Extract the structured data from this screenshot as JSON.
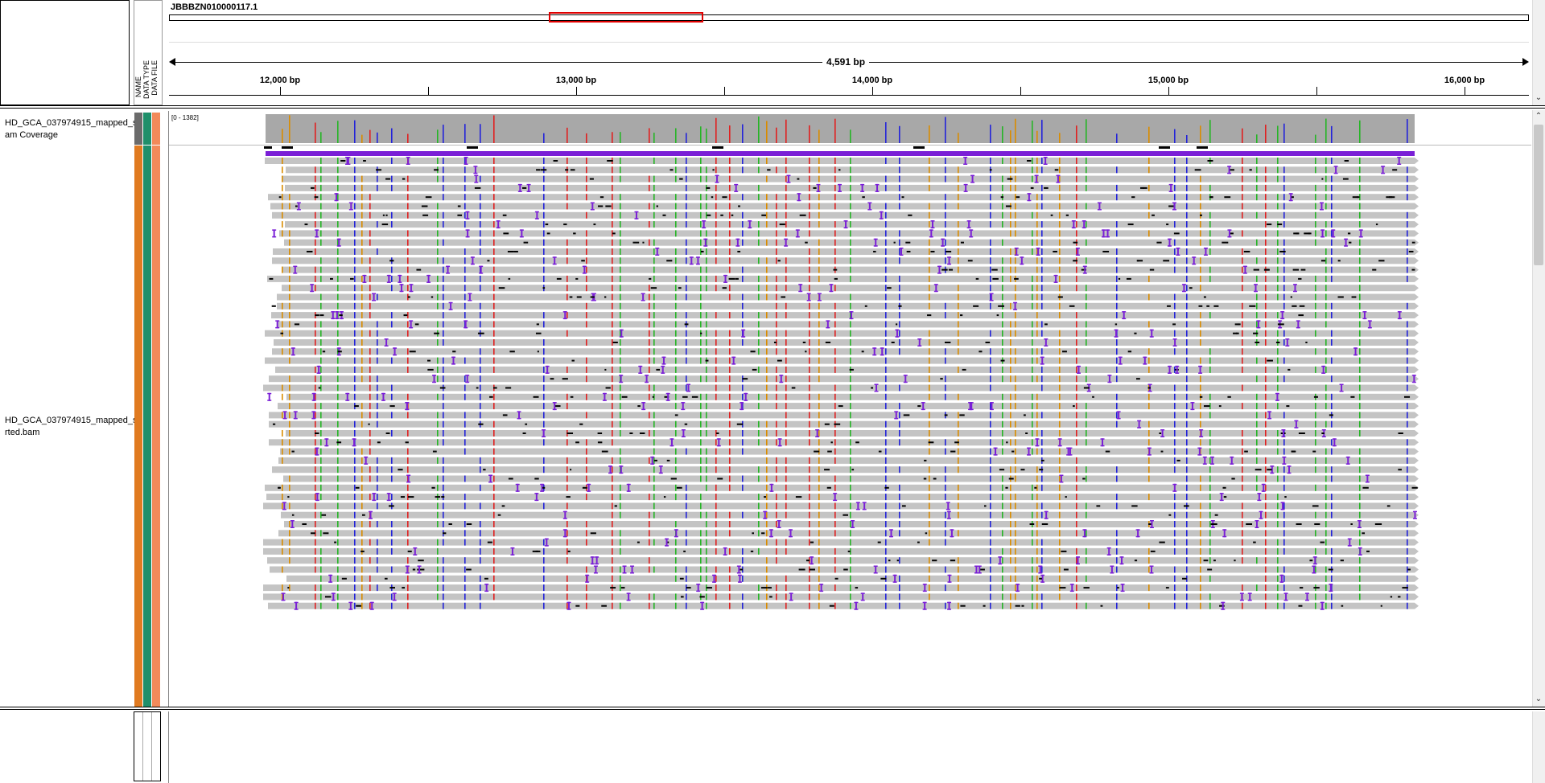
{
  "header": {
    "chromosome": "JBBBZN010000117.1",
    "span_label": "4,591 bp"
  },
  "attribute_headers": [
    "NAME",
    "DATA TYPE",
    "DATA FILE"
  ],
  "ruler": {
    "ticks": [
      {
        "label": "12,000 bp"
      },
      {
        "label": "13,000 bp"
      },
      {
        "label": "14,000 bp"
      },
      {
        "label": "15,000 bp"
      },
      {
        "label": "16,000 bp"
      }
    ]
  },
  "tracks": {
    "coverage": {
      "name_line1": "HD_GCA_037974915_mapped_s",
      "name_line2": "am Coverage",
      "range": "[0 - 1382]"
    },
    "alignment": {
      "name_line1": "HD_GCA_037974915_mapped_s",
      "name_line2": "rted.bam"
    }
  },
  "colors": {
    "read_gray": "#c4c4c4",
    "coverage_gray": "#a8a8a8",
    "insertion": "#7a1fd6",
    "A": "#26b526",
    "C": "#2323d9",
    "G": "#d98c00",
    "T": "#e02020",
    "attr_orange": "#e07a20",
    "attr_teal": "#1f8f6a",
    "attr_salmon": "#f28a5a",
    "region_box": "#e00000"
  }
}
